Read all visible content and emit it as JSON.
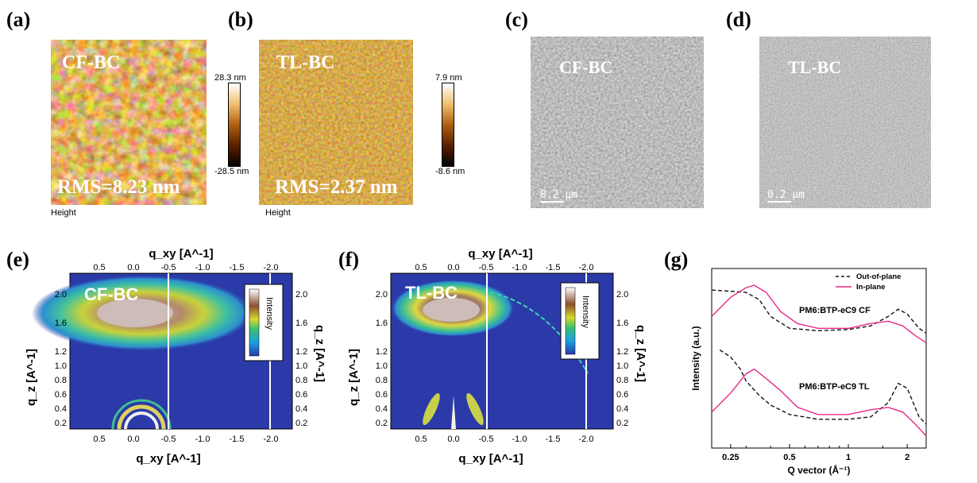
{
  "panels": {
    "a": {
      "label": "(a)",
      "title": "CF-BC",
      "rms": "RMS=8.23 nm",
      "footer": "Height",
      "cb_max": "28.3 nm",
      "cb_min": "-28.5 nm"
    },
    "b": {
      "label": "(b)",
      "title": "TL-BC",
      "rms": "RMS=2.37 nm",
      "footer": "Height",
      "cb_max": "7.9 nm",
      "cb_min": "-8.6 nm"
    },
    "c": {
      "label": "(c)",
      "title": "CF-BC",
      "scale": "0.2 μm"
    },
    "d": {
      "label": "(d)",
      "title": "TL-BC",
      "scale": "0.2 μm"
    },
    "e": {
      "label": "(e)",
      "title": "CF-BC",
      "top_axis": "q_xy [A^-1]",
      "bottom_axis": "q_xy [A^-1]",
      "left_axis": "q_z [A^-1]",
      "right_axis": "q_z [A^-1]",
      "intensity": "Intensity"
    },
    "f": {
      "label": "(f)",
      "title": "TL-BC",
      "top_axis": "q_xy [A^-1]",
      "bottom_axis": "q_xy [A^-1]",
      "left_axis": "q_z [A^-1]",
      "right_axis": "q_z [A^-1]",
      "intensity": "Intensity"
    },
    "g": {
      "label": "(g)"
    }
  },
  "gixd_ticks": {
    "qxy": [
      "0.5",
      "0.0",
      "-0.5",
      "-1.0",
      "-1.5",
      "-2.0"
    ],
    "qz": [
      "2.0",
      "1.6",
      "1.2",
      "1.0",
      "0.8",
      "0.6",
      "0.4",
      "0.2"
    ]
  },
  "chart_data": {
    "type": "line",
    "xlabel": "Q vector (Å⁻¹)",
    "ylabel": "Intensity (a.u.)",
    "xscale": "log",
    "xlim": [
      0.2,
      2.5
    ],
    "xticks": [
      "0.25",
      "0.5",
      "1",
      "2"
    ],
    "legend": {
      "placement": "top-right"
    },
    "annotations": [
      "PM6:BTP-eC9 CF",
      "PM6:BTP-eC9 TL"
    ],
    "series": [
      {
        "name": "Out-of-plane",
        "group": "PM6:BTP-eC9 CF",
        "style": "dashed",
        "color": "#111111",
        "x": [
          0.2,
          0.25,
          0.3,
          0.35,
          0.4,
          0.5,
          0.7,
          1.0,
          1.3,
          1.6,
          1.8,
          2.0,
          2.3,
          2.5
        ],
        "y": [
          8.1,
          8.05,
          8.0,
          7.7,
          7.0,
          6.5,
          6.4,
          6.45,
          6.6,
          7.0,
          7.3,
          7.1,
          6.5,
          6.3
        ]
      },
      {
        "name": "In-plane",
        "group": "PM6:BTP-eC9 CF",
        "style": "solid",
        "color": "#e8288a",
        "x": [
          0.2,
          0.25,
          0.3,
          0.33,
          0.38,
          0.45,
          0.55,
          0.7,
          1.0,
          1.3,
          1.6,
          1.9,
          2.2,
          2.5
        ],
        "y": [
          7.0,
          7.8,
          8.2,
          8.3,
          8.0,
          7.2,
          6.7,
          6.5,
          6.5,
          6.7,
          6.8,
          6.6,
          6.2,
          5.9
        ]
      },
      {
        "name": "Out-of-plane",
        "group": "PM6:BTP-eC9 TL",
        "style": "dashed",
        "color": "#111111",
        "x": [
          0.22,
          0.25,
          0.28,
          0.3,
          0.35,
          0.4,
          0.5,
          0.7,
          1.0,
          1.3,
          1.6,
          1.8,
          2.0,
          2.3,
          2.5
        ],
        "y": [
          5.6,
          5.3,
          4.8,
          4.3,
          3.7,
          3.3,
          2.9,
          2.7,
          2.7,
          2.8,
          3.4,
          4.2,
          4.0,
          2.8,
          2.5
        ]
      },
      {
        "name": "In-plane",
        "group": "PM6:BTP-eC9 TL",
        "style": "solid",
        "color": "#e8288a",
        "x": [
          0.2,
          0.25,
          0.3,
          0.33,
          0.38,
          0.45,
          0.55,
          0.7,
          1.0,
          1.3,
          1.6,
          1.9,
          2.2,
          2.5
        ],
        "y": [
          3.0,
          3.8,
          4.6,
          4.8,
          4.4,
          3.9,
          3.2,
          2.9,
          2.9,
          3.1,
          3.2,
          3.0,
          2.5,
          2.0
        ]
      }
    ]
  }
}
